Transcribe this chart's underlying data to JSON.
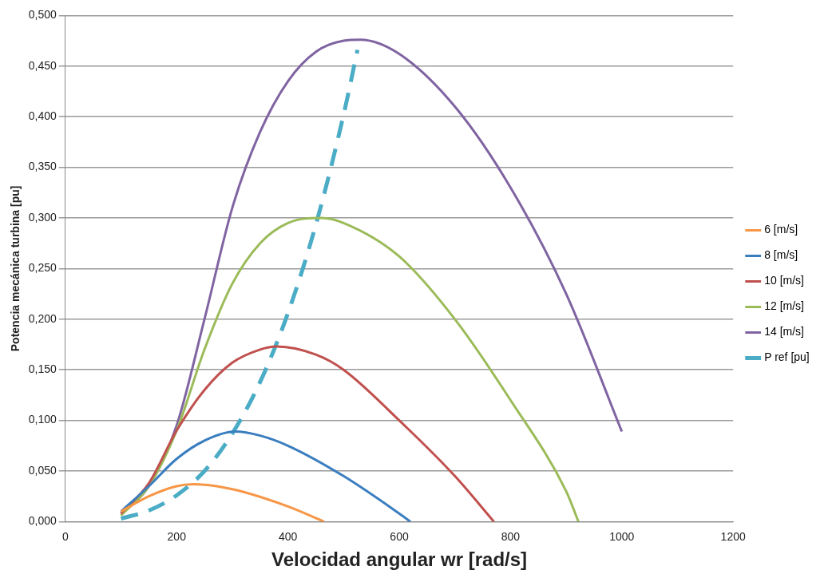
{
  "chart_data": {
    "type": "line",
    "xlabel": "Velocidad angular wr [rad/s]",
    "ylabel": "Potencia mecánica turbina [pu]",
    "xlim": [
      0,
      1200
    ],
    "xticks": [
      0,
      200,
      400,
      600,
      800,
      1000,
      1200
    ],
    "ylim": [
      0,
      0.5
    ],
    "yticks": [
      {
        "value": 0,
        "label": "0,000"
      },
      {
        "value": 0.05,
        "label": "0,050"
      },
      {
        "value": 0.1,
        "label": "0,100"
      },
      {
        "value": 0.15,
        "label": "0,150"
      },
      {
        "value": 0.2,
        "label": "0,200"
      },
      {
        "value": 0.25,
        "label": "0,250"
      },
      {
        "value": 0.3,
        "label": "0,300"
      },
      {
        "value": 0.35,
        "label": "0,350"
      },
      {
        "value": 0.4,
        "label": "0,400"
      },
      {
        "value": 0.45,
        "label": "0,450"
      },
      {
        "value": 0.5,
        "label": "0,500"
      }
    ],
    "grid": "y",
    "legend": "right",
    "marker": "none",
    "series": [
      {
        "name": "6 [m/s]",
        "color": "#f79646",
        "x": [
          100,
          150,
          200,
          230,
          300,
          400,
          465
        ],
        "values": [
          0.01,
          0.025,
          0.035,
          0.037,
          0.032,
          0.015,
          0
        ]
      },
      {
        "name": "8 [m/s]",
        "color": "#3a7ebf",
        "x": [
          100,
          150,
          200,
          250,
          305,
          350,
          400,
          500,
          600,
          620
        ],
        "values": [
          0.01,
          0.035,
          0.062,
          0.08,
          0.089,
          0.085,
          0.075,
          0.045,
          0.008,
          0
        ]
      },
      {
        "name": "10 [m/s]",
        "color": "#c0504d",
        "x": [
          100,
          150,
          200,
          250,
          300,
          350,
          380,
          450,
          500,
          600,
          700,
          770
        ],
        "values": [
          0.008,
          0.038,
          0.09,
          0.13,
          0.157,
          0.17,
          0.173,
          0.165,
          0.15,
          0.1,
          0.045,
          0
        ]
      },
      {
        "name": "12 [m/s]",
        "color": "#9bbb59",
        "x": [
          100,
          150,
          200,
          250,
          300,
          350,
          400,
          460,
          500,
          600,
          700,
          800,
          900,
          922
        ],
        "values": [
          0.006,
          0.035,
          0.09,
          0.17,
          0.235,
          0.275,
          0.295,
          0.3,
          0.295,
          0.262,
          0.2,
          0.12,
          0.03,
          0
        ]
      },
      {
        "name": "14 [m/s]",
        "color": "#8064a2",
        "x": [
          100,
          150,
          200,
          250,
          300,
          350,
          400,
          450,
          500,
          530,
          600,
          700,
          800,
          900,
          1000
        ],
        "values": [
          0.008,
          0.035,
          0.095,
          0.2,
          0.31,
          0.385,
          0.435,
          0.464,
          0.475,
          0.476,
          0.462,
          0.41,
          0.33,
          0.225,
          0.089
        ]
      },
      {
        "name": "P ref [pu]",
        "color": "#4bacc6",
        "line_style": "dashed",
        "x": [
          100,
          150,
          200,
          250,
          300,
          350,
          400,
          450,
          500,
          525
        ],
        "values": [
          0.003,
          0.011,
          0.026,
          0.05,
          0.087,
          0.138,
          0.206,
          0.293,
          0.402,
          0.466
        ]
      }
    ]
  }
}
